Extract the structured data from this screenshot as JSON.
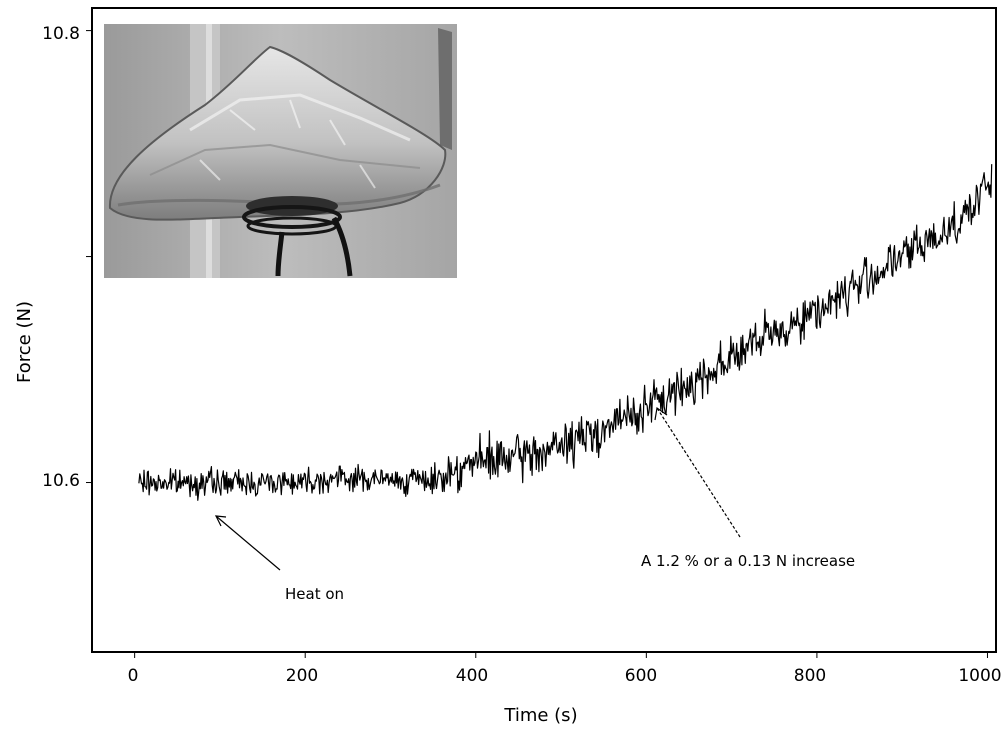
{
  "chart_data": {
    "type": "line",
    "title": "",
    "xlabel": "Time (s)",
    "ylabel": "Force (N)",
    "xlim": [
      -50,
      1010
    ],
    "ylim": [
      10.525,
      10.81
    ],
    "xticks": [
      "0",
      "200",
      "400",
      "600",
      "800",
      "1000"
    ],
    "yticks": [
      "10.6",
      "10.8"
    ],
    "grid": false,
    "legend": "none",
    "line_color": "#000000",
    "inset": "photo-of-foil-covered-cone-with-heating-coil",
    "series": [
      {
        "x": [
          5,
          50,
          100,
          150,
          200,
          250,
          300,
          350,
          370,
          400,
          450,
          500,
          550,
          600,
          650,
          700,
          750,
          800,
          850,
          900,
          950,
          990,
          1005
        ],
        "values": [
          10.6,
          10.6,
          10.6,
          10.6,
          10.601,
          10.602,
          10.601,
          10.601,
          10.605,
          10.609,
          10.611,
          10.616,
          10.624,
          10.633,
          10.643,
          10.656,
          10.666,
          10.676,
          10.688,
          10.7,
          10.711,
          10.725,
          10.735
        ]
      }
    ],
    "annotations": [
      {
        "text": "Heat on",
        "x": 95,
        "y": 10.586
      },
      {
        "text": "A 1.2 % or a 0.13 N increase",
        "x": 615,
        "y": 10.632
      }
    ]
  }
}
